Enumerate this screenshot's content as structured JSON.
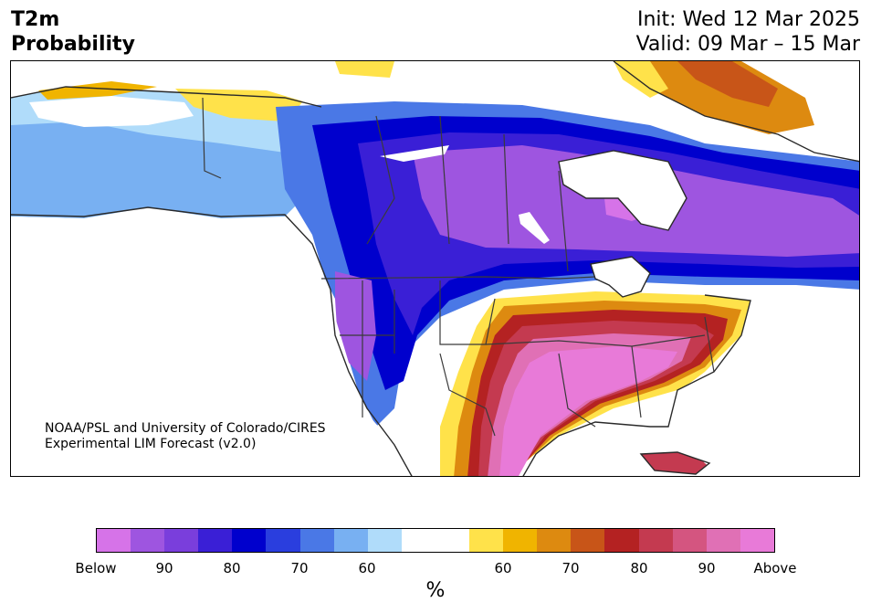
{
  "header": {
    "title_line1": "T2m",
    "title_line2": "Probability",
    "init": "Init: Wed 12 Mar 2025",
    "valid": "Valid: 09 Mar – 15 Mar"
  },
  "map": {
    "credit_line1": "NOAA/PSL and University of Colorado/CIRES",
    "credit_line2": "Experimental LIM Forecast (v2.0)",
    "region": "North America",
    "dominant_below": "western and northern North America",
    "dominant_above": "southeastern and south-central United States, northeastern Canadian Arctic"
  },
  "colorbar": {
    "colors": [
      "#d673e8",
      "#9e55e0",
      "#7a3edc",
      "#3a1fd6",
      "#0000cd",
      "#2a3ede",
      "#4a78e6",
      "#78b0f2",
      "#b0dcfa",
      "#ffffff",
      "#ffffff",
      "#ffe24a",
      "#f0b400",
      "#dd8a10",
      "#c85518",
      "#b42222",
      "#c43a50",
      "#d45580",
      "#e070b5",
      "#e87ad8"
    ],
    "tick_labels": [
      "Below",
      "90",
      "80",
      "70",
      "60",
      "60",
      "70",
      "80",
      "90",
      "Above"
    ],
    "unit": "%"
  }
}
